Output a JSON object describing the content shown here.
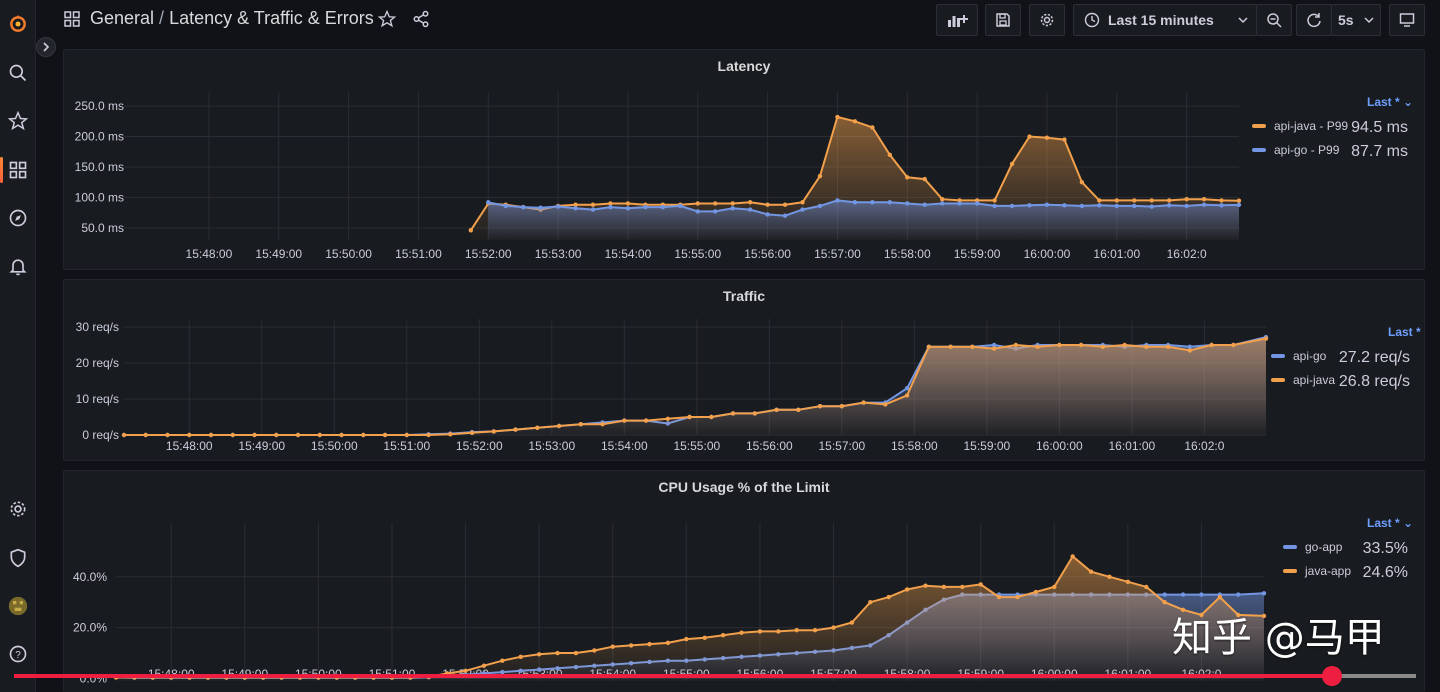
{
  "topbar": {
    "breadcrumb_folder": "General",
    "breadcrumb_sep": " / ",
    "dashboard_title": "Latency & Traffic & Errors",
    "time_range": "Last 15 minutes",
    "refresh_interval": "5s"
  },
  "colors": {
    "blue": "#7396e4",
    "orange": "#f2a04b",
    "legend_head": "#6e9fff",
    "accent": "#f55f3e"
  },
  "icons": {
    "sidebar": [
      "grafana-logo-icon",
      "search-icon",
      "star-icon",
      "dashboards-icon",
      "explore-compass-icon",
      "alerting-bell-icon",
      "configuration-gear-icon",
      "server-admin-shield-icon",
      "user-avatar",
      "help-icon"
    ]
  },
  "x_ticks": [
    "15:48:00",
    "15:49:00",
    "15:50:00",
    "15:51:00",
    "15:52:00",
    "15:53:00",
    "15:54:00",
    "15:55:00",
    "15:56:00",
    "15:57:00",
    "15:58:00",
    "15:59:00",
    "16:00:00",
    "16:01:00",
    "16:02:0"
  ],
  "panels": {
    "latency": {
      "title": "Latency",
      "legend_head": "Last * ⌄",
      "legend": [
        {
          "name": "api-java - P99",
          "value": "94.5 ms",
          "color": "#f2a04b"
        },
        {
          "name": "api-go - P99",
          "value": "87.7 ms",
          "color": "#7396e4"
        }
      ]
    },
    "traffic": {
      "title": "Traffic",
      "legend_head": "Last *",
      "legend": [
        {
          "name": "api-go",
          "value": "27.2 req/s",
          "color": "#7396e4"
        },
        {
          "name": "api-java",
          "value": "26.8 req/s",
          "color": "#f2a04b"
        }
      ]
    },
    "cpu": {
      "title": "CPU Usage % of the Limit",
      "legend_head": "Last * ⌄",
      "legend": [
        {
          "name": "go-app",
          "value": "33.5%",
          "color": "#7396e4"
        },
        {
          "name": "java-app",
          "value": "24.6%",
          "color": "#f2a04b"
        }
      ]
    }
  },
  "chart_data": [
    {
      "type": "area",
      "title": "Latency",
      "x_ticks": [
        "15:48:00",
        "15:49:00",
        "15:50:00",
        "15:51:00",
        "15:52:00",
        "15:53:00",
        "15:54:00",
        "15:55:00",
        "15:56:00",
        "15:57:00",
        "15:58:00",
        "15:59:00",
        "16:00:00",
        "16:01:00",
        "16:02:0"
      ],
      "y_ticks": [
        "50.0 ms",
        "100.0 ms",
        "150.0 ms",
        "200.0 ms",
        "250.0 ms"
      ],
      "ylim": [
        30,
        260
      ],
      "x_minutes_range": [
        -0.5,
        14.75
      ],
      "legend_placement": "right",
      "grid": true,
      "series": [
        {
          "name": "api-java - P99",
          "color": "#f2a04b",
          "x": [
            3.75,
            4.0,
            4.25,
            4.5,
            4.75,
            5.0,
            5.25,
            5.5,
            5.75,
            6.0,
            6.25,
            6.5,
            6.75,
            7.0,
            7.25,
            7.5,
            7.75,
            8.0,
            8.25,
            8.5,
            8.75,
            9.0,
            9.25,
            9.5,
            9.75,
            10.0,
            10.25,
            10.5,
            10.75,
            11.0,
            11.25,
            11.5,
            11.75,
            12.0,
            12.25,
            12.5,
            12.75,
            13.0,
            13.25,
            13.5,
            13.75,
            14.0,
            14.25,
            14.5,
            14.75
          ],
          "y": [
            46,
            90,
            88,
            84,
            80,
            86,
            88,
            88,
            90,
            90,
            88,
            88,
            88,
            90,
            90,
            90,
            92,
            88,
            88,
            92,
            135,
            232,
            225,
            215,
            170,
            133,
            130,
            97,
            95,
            95,
            95,
            155,
            200,
            198,
            195,
            125,
            95,
            95,
            95,
            95,
            95,
            97,
            97,
            95,
            94.5
          ]
        },
        {
          "name": "api-go - P99",
          "color": "#7396e4",
          "x": [
            4.0,
            4.25,
            4.5,
            4.75,
            5.0,
            5.25,
            5.5,
            5.75,
            6.0,
            6.25,
            6.5,
            6.75,
            7.0,
            7.25,
            7.5,
            7.75,
            8.0,
            8.25,
            8.5,
            8.75,
            9.0,
            9.25,
            9.5,
            9.75,
            10.0,
            10.25,
            10.5,
            10.75,
            11.0,
            11.25,
            11.5,
            11.75,
            12.0,
            12.25,
            12.5,
            12.75,
            13.0,
            13.25,
            13.5,
            13.75,
            14.0,
            14.25,
            14.5,
            14.75
          ],
          "y": [
            92,
            86,
            84,
            83,
            85,
            82,
            80,
            84,
            82,
            84,
            84,
            86,
            77,
            77,
            82,
            80,
            72,
            70,
            80,
            86,
            95,
            92,
            92,
            92,
            90,
            88,
            90,
            90,
            90,
            86,
            86,
            87,
            88,
            87,
            86,
            87,
            86,
            86,
            85,
            87,
            86,
            88,
            87,
            87.7
          ]
        }
      ]
    },
    {
      "type": "area",
      "title": "Traffic",
      "x_ticks": [
        "15:48:00",
        "15:49:00",
        "15:50:00",
        "15:51:00",
        "15:52:00",
        "15:53:00",
        "15:54:00",
        "15:55:00",
        "15:56:00",
        "15:57:00",
        "15:58:00",
        "15:59:00",
        "16:00:00",
        "16:01:00",
        "16:02:0"
      ],
      "y_ticks": [
        "0 req/s",
        "10 req/s",
        "20 req/s",
        "30 req/s"
      ],
      "ylim": [
        0,
        30
      ],
      "x_minutes_range": [
        -0.9,
        14.85
      ],
      "legend_placement": "right",
      "grid": true,
      "series": [
        {
          "name": "api-go",
          "color": "#7396e4",
          "x": [
            -0.9,
            -0.6,
            -0.3,
            0,
            0.3,
            0.6,
            0.9,
            1.2,
            1.5,
            1.8,
            2.1,
            2.4,
            2.7,
            3.0,
            3.3,
            3.6,
            3.9,
            4.2,
            4.5,
            4.8,
            5.1,
            5.4,
            5.7,
            6.0,
            6.3,
            6.6,
            6.9,
            7.2,
            7.5,
            7.8,
            8.1,
            8.4,
            8.7,
            9.0,
            9.3,
            9.6,
            9.9,
            10.2,
            10.5,
            10.8,
            11.1,
            11.4,
            11.7,
            12.0,
            12.3,
            12.6,
            12.9,
            13.2,
            13.5,
            13.8,
            14.1,
            14.4,
            14.85
          ],
          "y": [
            0,
            0,
            0,
            0,
            0,
            0,
            0,
            0,
            0,
            0,
            0,
            0,
            0,
            0,
            0.2,
            0.4,
            0.8,
            1,
            1.5,
            2,
            2.5,
            3,
            3.5,
            4,
            4,
            3.2,
            5,
            5,
            6,
            6,
            7,
            7,
            8,
            8,
            9,
            9,
            13,
            24.5,
            24.5,
            24.5,
            25,
            24,
            25,
            25,
            25,
            25,
            24.5,
            25,
            25,
            24.5,
            25,
            25,
            27.2
          ]
        },
        {
          "name": "api-java",
          "color": "#f2a04b",
          "x": [
            -0.9,
            -0.6,
            -0.3,
            0,
            0.3,
            0.6,
            0.9,
            1.2,
            1.5,
            1.8,
            2.1,
            2.4,
            2.7,
            3.0,
            3.3,
            3.6,
            3.9,
            4.2,
            4.5,
            4.8,
            5.1,
            5.4,
            5.7,
            6.0,
            6.3,
            6.6,
            6.9,
            7.2,
            7.5,
            7.8,
            8.1,
            8.4,
            8.7,
            9.0,
            9.3,
            9.6,
            9.9,
            10.2,
            10.5,
            10.8,
            11.1,
            11.4,
            11.7,
            12.0,
            12.3,
            12.6,
            12.9,
            13.2,
            13.5,
            13.8,
            14.1,
            14.4,
            14.85
          ],
          "y": [
            0,
            0,
            0,
            0,
            0,
            0,
            0,
            0,
            0,
            0,
            0,
            0,
            0,
            0,
            0,
            0.2,
            0.6,
            1,
            1.5,
            2,
            2.5,
            3,
            3,
            4,
            4,
            4.5,
            5,
            5,
            6,
            6,
            7,
            7,
            8,
            8,
            9,
            8.5,
            11,
            24.5,
            24.5,
            24.5,
            24,
            25,
            24.5,
            25,
            25,
            24.5,
            25,
            24.5,
            24.5,
            23.5,
            25,
            25,
            26.8
          ]
        }
      ]
    },
    {
      "type": "area",
      "title": "CPU Usage % of the Limit",
      "x_ticks": [
        "15:48:00",
        "15:49:00",
        "15:50:00",
        "15:51:00",
        "15:52:00",
        "15:53:00",
        "15:54:00",
        "15:55:00",
        "15:56:00",
        "15:57:00",
        "15:58:00",
        "15:59:00",
        "16:00:00",
        "16:01:00",
        "16:02:0"
      ],
      "y_ticks": [
        "0.0%",
        "20.0%",
        "40.0%"
      ],
      "ylim": [
        -1,
        58
      ],
      "x_minutes_range": [
        -0.75,
        14.85
      ],
      "legend_placement": "right",
      "grid": true,
      "series": [
        {
          "name": "go-app",
          "color": "#7396e4",
          "x": [
            -0.75,
            -0.5,
            -0.25,
            0,
            0.25,
            0.5,
            0.75,
            1.0,
            1.25,
            1.5,
            1.75,
            2.0,
            2.25,
            2.5,
            2.75,
            3.0,
            3.25,
            3.5,
            3.75,
            4.0,
            4.25,
            4.5,
            4.75,
            5.0,
            5.25,
            5.5,
            5.75,
            6.0,
            6.25,
            6.5,
            6.75,
            7.0,
            7.25,
            7.5,
            7.75,
            8.0,
            8.25,
            8.5,
            8.75,
            9.0,
            9.25,
            9.5,
            9.75,
            10.0,
            10.25,
            10.5,
            10.75,
            11.0,
            11.25,
            11.5,
            11.75,
            12.0,
            12.25,
            12.5,
            12.75,
            13.0,
            13.25,
            13.5,
            13.75,
            14.0,
            14.25,
            14.5,
            14.85
          ],
          "y": [
            0.4,
            0.3,
            0.3,
            0.3,
            0.3,
            0.3,
            0.3,
            0.3,
            0.3,
            0.3,
            0.3,
            0.3,
            0.3,
            0.3,
            0.3,
            0.3,
            0.3,
            0.5,
            1,
            1.5,
            2,
            2.5,
            3,
            3.5,
            4,
            4.5,
            5,
            5.5,
            6,
            6.5,
            7,
            7,
            7.5,
            8,
            8.5,
            9,
            9.5,
            10,
            10.5,
            11,
            12,
            13,
            17,
            22,
            27,
            31,
            33,
            33,
            33,
            33,
            33,
            33,
            33,
            33,
            33,
            33,
            33,
            33,
            33,
            33,
            33,
            33,
            33.5
          ]
        },
        {
          "name": "java-app",
          "color": "#f2a04b",
          "x": [
            -0.75,
            -0.5,
            -0.25,
            0,
            0.25,
            0.5,
            0.75,
            1.0,
            1.25,
            1.5,
            1.75,
            2.0,
            2.25,
            2.5,
            2.75,
            3.0,
            3.25,
            3.5,
            3.75,
            4.0,
            4.25,
            4.5,
            4.75,
            5.0,
            5.25,
            5.5,
            5.75,
            6.0,
            6.25,
            6.5,
            6.75,
            7.0,
            7.25,
            7.5,
            7.75,
            8.0,
            8.25,
            8.5,
            8.75,
            9.0,
            9.25,
            9.5,
            9.75,
            10.0,
            10.25,
            10.5,
            10.75,
            11.0,
            11.25,
            11.5,
            11.75,
            12.0,
            12.25,
            12.5,
            12.75,
            13.0,
            13.25,
            13.5,
            13.75,
            14.0,
            14.25,
            14.5,
            14.85
          ],
          "y": [
            0.4,
            0.4,
            0.4,
            0.4,
            0.4,
            0.4,
            0.4,
            0.4,
            0.4,
            0.4,
            0.4,
            0.4,
            0.4,
            0.4,
            0.4,
            0.4,
            0.4,
            0.6,
            2,
            3,
            5,
            7,
            8.5,
            9.5,
            10,
            10,
            11,
            12.5,
            13,
            13.5,
            14,
            15.5,
            16,
            17,
            18,
            18.5,
            18.5,
            19,
            19,
            20,
            22,
            30,
            32,
            35,
            36.5,
            36,
            36,
            37,
            32,
            32,
            34,
            36,
            48,
            42,
            40,
            38,
            36,
            30,
            27,
            25,
            32,
            25,
            24.6
          ]
        }
      ]
    }
  ],
  "watermark": "知乎 @马甲",
  "video_progress": 0.94
}
